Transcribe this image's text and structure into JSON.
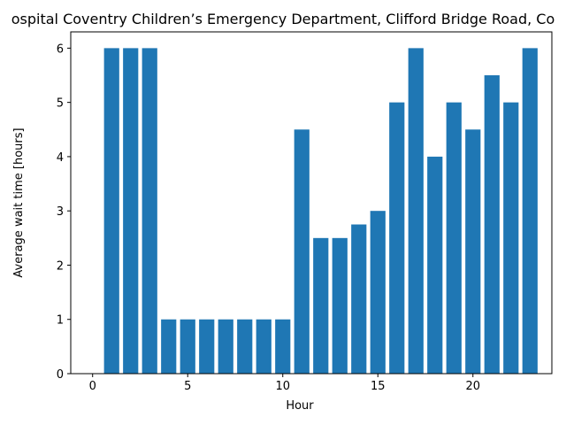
{
  "chart_data": {
    "type": "bar",
    "title": "ospital Coventry Children’s Emergency Department, Clifford Bridge Road, Co",
    "xlabel": "Hour",
    "ylabel": "Average wait time [hours]",
    "x": [
      0,
      1,
      2,
      3,
      4,
      5,
      6,
      7,
      8,
      9,
      10,
      11,
      12,
      13,
      14,
      15,
      16,
      17,
      18,
      19,
      20,
      21,
      22,
      23
    ],
    "values": [
      0,
      6,
      6,
      6,
      1,
      1,
      1,
      1,
      1,
      1,
      1,
      4.5,
      2.5,
      2.5,
      2.75,
      3,
      5,
      6,
      4,
      5,
      4.5,
      5.5,
      5,
      6
    ],
    "xlim": [
      -1.15,
      24.15
    ],
    "ylim": [
      0,
      6.3
    ],
    "xticks": [
      0,
      5,
      10,
      15,
      20
    ],
    "yticks": [
      0,
      1,
      2,
      3,
      4,
      5,
      6
    ],
    "bar_color": "#1f77b4",
    "grid": false
  }
}
